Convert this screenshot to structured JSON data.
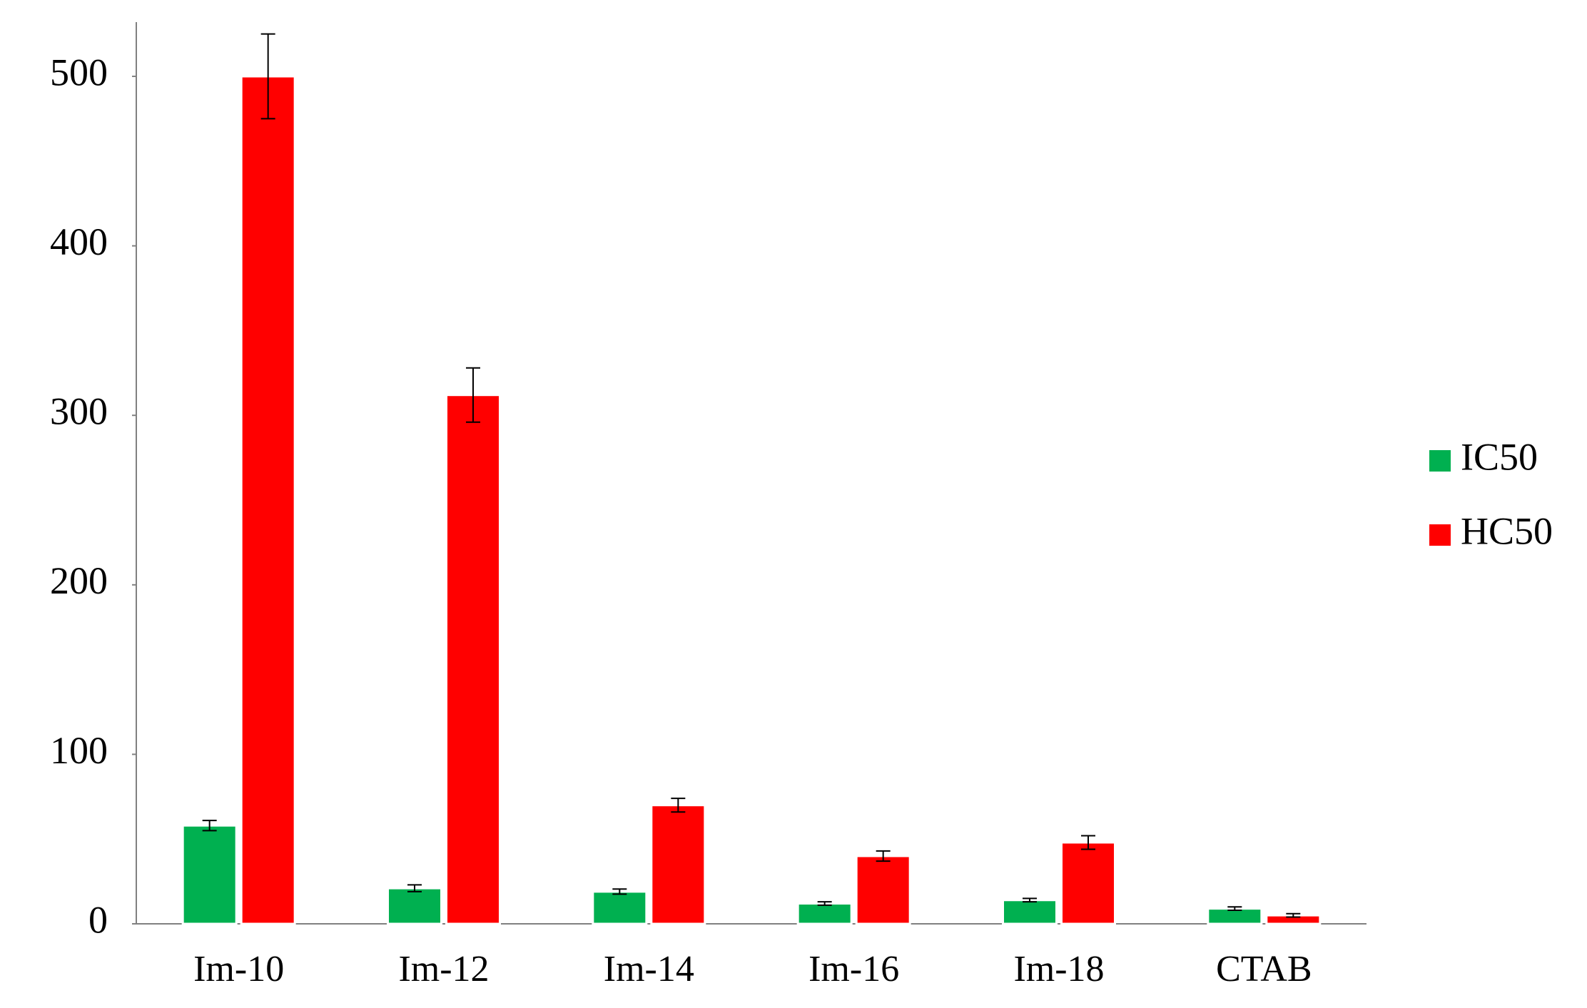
{
  "chart_data": {
    "type": "bar",
    "categories": [
      "Im-10",
      "Im-12",
      "Im-14",
      "Im-16",
      "Im-18",
      "CTAB"
    ],
    "series": [
      {
        "name": "IC50",
        "color": "#00b050",
        "values": [
          58,
          21,
          19,
          12,
          14,
          9
        ],
        "errors": [
          3,
          2,
          1.5,
          1,
          1,
          1
        ]
      },
      {
        "name": "HC50",
        "color": "#ff0000",
        "values": [
          500,
          312,
          70,
          40,
          48,
          5
        ],
        "errors": [
          25,
          16,
          4,
          3,
          4,
          1
        ]
      }
    ],
    "ylim": [
      0,
      532
    ],
    "yticks": [
      0,
      100,
      200,
      300,
      400,
      500
    ],
    "grid": false,
    "legend": "right"
  }
}
